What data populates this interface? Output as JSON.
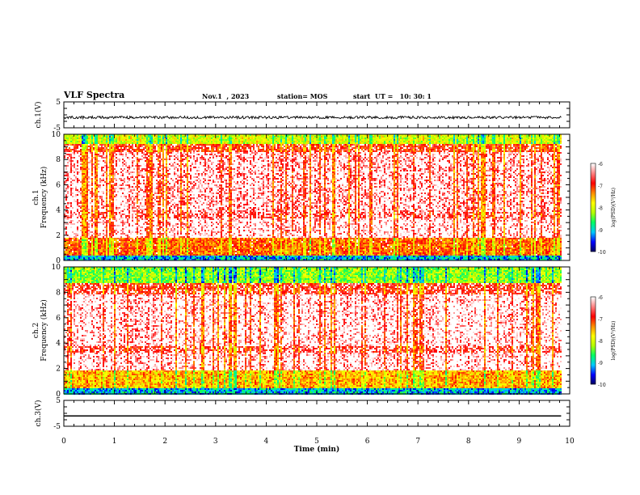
{
  "header": {
    "title": "VLF Spectra",
    "date": "Nov.1  , 2023",
    "station": "station= MOS",
    "start": "start  UT =   10: 30: 1"
  },
  "chart_data": [
    {
      "type": "line",
      "panel": "ch1-waveform",
      "ylabel": "ch.1(V)",
      "ylim": [
        -5,
        5
      ],
      "yticks": [
        "5",
        "-5"
      ],
      "xlim": [
        0,
        10
      ],
      "x_end": 9.83,
      "series": [
        {
          "values_approx": "noisy trace around -1 V, amplitude ~0.5 V",
          "mean": -1,
          "amp": 0.5
        }
      ]
    },
    {
      "type": "heatmap",
      "panel": "ch1-spectrogram",
      "ylabel": "ch.1\nFrequency (kHz)",
      "ylim": [
        0,
        10
      ],
      "yticks": [
        "0",
        "2",
        "4",
        "6",
        "8",
        "10"
      ],
      "xlim": [
        0,
        10
      ],
      "x_end": 9.83,
      "colorbar": {
        "label": "log(PSD)(V²/Hz)",
        "range": [
          -10,
          -6
        ],
        "ticks": [
          "-6",
          "-7",
          "-8",
          "-9",
          "-10"
        ]
      },
      "bands": [
        {
          "from": 0,
          "to": 0.4,
          "level": -9.2
        },
        {
          "from": 0.4,
          "to": 1.8,
          "level": -7.2
        },
        {
          "from": 1.8,
          "to": 3.3,
          "level": -6.3
        },
        {
          "from": 3.3,
          "to": 3.8,
          "level": -6.6
        },
        {
          "from": 3.8,
          "to": 8.6,
          "level": -6.4
        },
        {
          "from": 8.6,
          "to": 9.2,
          "level": -6.9
        },
        {
          "from": 9.2,
          "to": 10,
          "level": -8.0
        }
      ]
    },
    {
      "type": "heatmap",
      "panel": "ch2-spectrogram",
      "ylabel": "ch.2\nFrequency (kHz)",
      "ylim": [
        0,
        10
      ],
      "yticks": [
        "0",
        "2",
        "4",
        "6",
        "8",
        "10"
      ],
      "xlim": [
        0,
        10
      ],
      "x_end": 9.83,
      "colorbar": {
        "label": "log(PSD)(V²/Hz)",
        "range": [
          -10,
          -6
        ],
        "ticks": [
          "-6",
          "-7",
          "-8",
          "-9",
          "-10"
        ]
      },
      "bands": [
        {
          "from": 0,
          "to": 0.3,
          "level": -9.2
        },
        {
          "from": 0.3,
          "to": 1.8,
          "level": -7.5
        },
        {
          "from": 1.8,
          "to": 3.3,
          "level": -6.3
        },
        {
          "from": 3.3,
          "to": 3.8,
          "level": -6.7
        },
        {
          "from": 3.8,
          "to": 7.8,
          "level": -6.3
        },
        {
          "from": 7.8,
          "to": 8.7,
          "level": -6.8
        },
        {
          "from": 8.7,
          "to": 10,
          "level": -8.3
        }
      ]
    },
    {
      "type": "line",
      "panel": "ch3-waveform",
      "ylabel": "ch.3(V)",
      "ylim": [
        -5,
        5
      ],
      "yticks": [
        "5",
        "-5"
      ],
      "xlim": [
        0,
        10
      ],
      "x_end": 9.83,
      "series": [
        {
          "values_approx": "flat line at -1 V",
          "mean": -1,
          "amp": 0
        }
      ]
    }
  ],
  "xaxis": {
    "xlabel": "Time  (min)",
    "ticks": [
      "0",
      "1",
      "2",
      "3",
      "4",
      "5",
      "6",
      "7",
      "8",
      "9",
      "10"
    ]
  },
  "colors": {
    "scale": [
      "#00005a",
      "#0000ff",
      "#00c8ff",
      "#00ff64",
      "#b4ff00",
      "#ffff00",
      "#ff8c00",
      "#ff0000",
      "#ff8080",
      "#ffffff"
    ],
    "trace": "#000000"
  }
}
